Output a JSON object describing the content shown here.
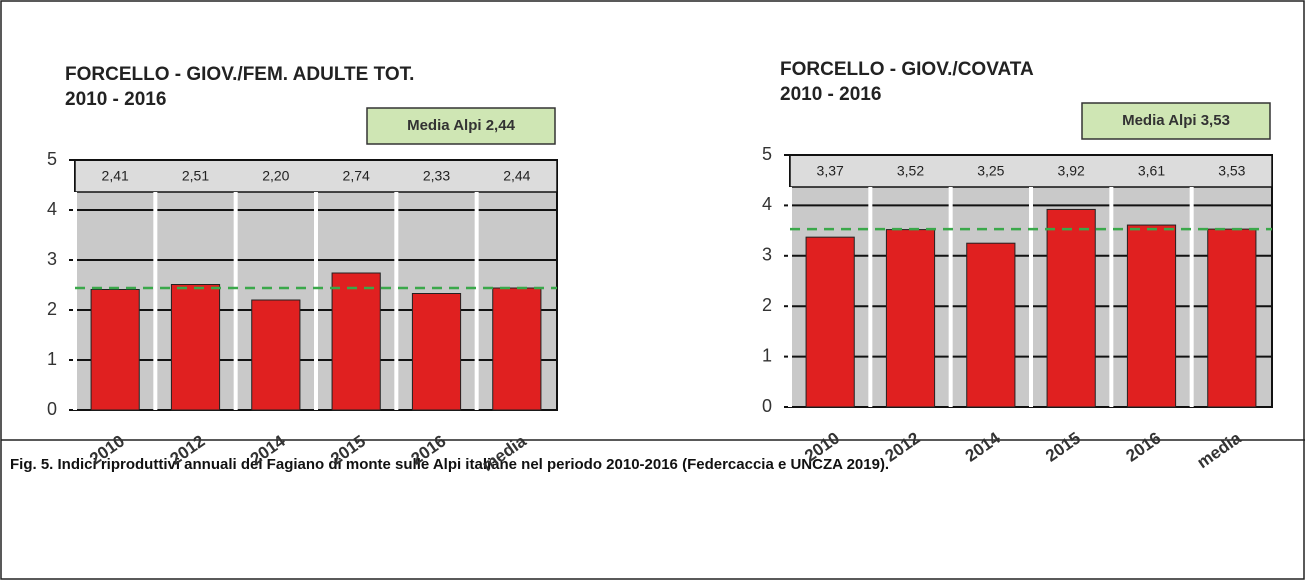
{
  "chart_data": [
    {
      "type": "bar",
      "title": "FORCELLO - GIOV./FEM. ADULTE TOT.",
      "subtitle": "2010 - 2016",
      "categories": [
        "2010",
        "2012",
        "2014",
        "2015",
        "2016",
        "media"
      ],
      "values": [
        2.41,
        2.51,
        2.2,
        2.74,
        2.33,
        2.44
      ],
      "value_labels": [
        "2,41",
        "2,51",
        "2,20",
        "2,74",
        "2,33",
        "2,44"
      ],
      "color": "#e02020",
      "ylim": [
        0,
        5
      ],
      "yticks": [
        0,
        1,
        2,
        3,
        4,
        5
      ],
      "grid": true,
      "reference_line": 2.44,
      "annotation": "Media Alpi 2,44"
    },
    {
      "type": "bar",
      "title": "FORCELLO - GIOV./COVATA",
      "subtitle": "2010 - 2016",
      "categories": [
        "2010",
        "2012",
        "2014",
        "2015",
        "2016",
        "media"
      ],
      "values": [
        3.37,
        3.52,
        3.25,
        3.92,
        3.61,
        3.53
      ],
      "value_labels": [
        "3,37",
        "3,52",
        "3,25",
        "3,92",
        "3,61",
        "3,53"
      ],
      "color": "#e02020",
      "ylim": [
        0,
        5
      ],
      "yticks": [
        0,
        1,
        2,
        3,
        4,
        5
      ],
      "grid": true,
      "reference_line": 3.53,
      "annotation": "Media Alpi 3,53"
    }
  ],
  "caption": "Fig. 5. Indici riproduttivi annuali del Fagiano di monte sulle Alpi italiane nel periodo 2010-2016 (Federcaccia e UNCZA 2019)."
}
